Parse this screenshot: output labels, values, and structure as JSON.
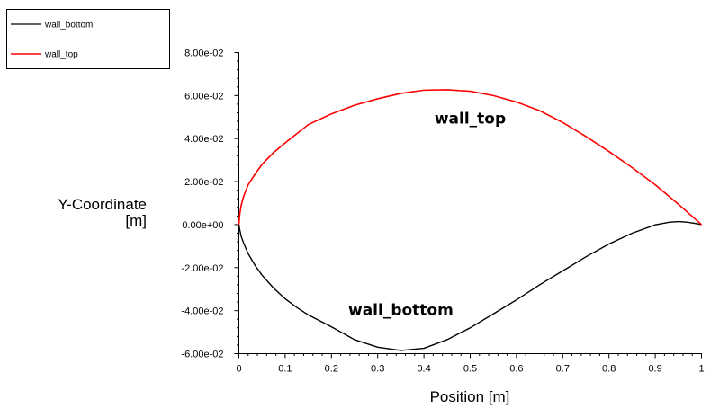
{
  "chart_data": {
    "type": "line",
    "title": "",
    "xlabel": "Position [m]",
    "ylabel_lines": [
      "Y-Coordinate",
      "[m]"
    ],
    "xlim": [
      0,
      1
    ],
    "ylim": [
      -0.06,
      0.08
    ],
    "x_ticks": [
      0,
      0.1,
      0.2,
      0.3,
      0.4,
      0.5,
      0.6,
      0.7,
      0.8,
      0.9,
      1
    ],
    "x_tick_labels": [
      "0",
      "0.1",
      "0.2",
      "0.3",
      "0.4",
      "0.5",
      "0.6",
      "0.7",
      "0.8",
      "0.9",
      "1"
    ],
    "y_ticks": [
      -0.06,
      -0.04,
      -0.02,
      0,
      0.02,
      0.04,
      0.06,
      0.08
    ],
    "y_tick_labels": [
      "-6.00e-02",
      "-4.00e-02",
      "-2.00e-02",
      "0.00e+00",
      "2.00e-02",
      "4.00e-02",
      "6.00e-02",
      "8.00e-02"
    ],
    "legend_position": "top-left",
    "grid": false,
    "series": [
      {
        "name": "wall_bottom",
        "color": "#000000",
        "x": [
          0,
          0.002,
          0.005,
          0.01,
          0.02,
          0.035,
          0.05,
          0.075,
          0.1,
          0.125,
          0.15,
          0.2,
          0.25,
          0.3,
          0.35,
          0.4,
          0.45,
          0.5,
          0.55,
          0.6,
          0.65,
          0.7,
          0.75,
          0.8,
          0.85,
          0.9,
          0.93,
          0.95,
          0.97,
          0.99,
          1
        ],
        "y": [
          0,
          -0.0025,
          -0.0055,
          -0.0085,
          -0.0135,
          -0.019,
          -0.0235,
          -0.0295,
          -0.0345,
          -0.0385,
          -0.042,
          -0.0475,
          -0.0535,
          -0.057,
          -0.0585,
          -0.0575,
          -0.0535,
          -0.048,
          -0.0415,
          -0.035,
          -0.028,
          -0.0215,
          -0.015,
          -0.009,
          -0.004,
          -0.0001,
          0.0011,
          0.0014,
          0.0011,
          0.0004,
          0
        ]
      },
      {
        "name": "wall_top",
        "color": "#ff0000",
        "x": [
          0,
          0.002,
          0.005,
          0.01,
          0.02,
          0.035,
          0.05,
          0.075,
          0.1,
          0.15,
          0.2,
          0.25,
          0.3,
          0.35,
          0.4,
          0.45,
          0.5,
          0.55,
          0.6,
          0.65,
          0.7,
          0.75,
          0.8,
          0.85,
          0.9,
          0.95,
          1
        ],
        "y": [
          0,
          0.005,
          0.009,
          0.013,
          0.0185,
          0.0235,
          0.028,
          0.0335,
          0.038,
          0.0465,
          0.0515,
          0.0555,
          0.0585,
          0.061,
          0.0625,
          0.0627,
          0.062,
          0.06,
          0.057,
          0.053,
          0.0475,
          0.041,
          0.034,
          0.0265,
          0.0185,
          0.0095,
          0
        ]
      }
    ],
    "annotations": [
      {
        "text": "wall_top",
        "x": 0.5,
        "y": 0.047
      },
      {
        "text": "wall_bottom",
        "x": 0.35,
        "y": -0.042
      }
    ]
  }
}
